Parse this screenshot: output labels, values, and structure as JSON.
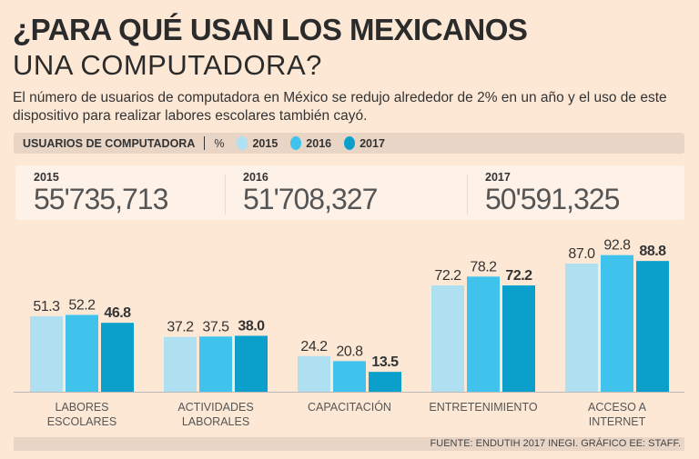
{
  "title_line1": "¿PARA QUÉ USAN LOS MEXICANOS",
  "title_line2": "UNA COMPUTADORA?",
  "subtitle": "El número de usuarios de computadora en México se redujo alrededor de 2% en un año y el uso de este dispositivo para realizar labores escolares también cayó.",
  "legend": {
    "label": "USUARIOS DE COMPUTADORA",
    "unit": "%",
    "items": [
      {
        "year": "2015",
        "color": "#aee0f2"
      },
      {
        "year": "2016",
        "color": "#3fc2ec"
      },
      {
        "year": "2017",
        "color": "#0aa0cb"
      }
    ]
  },
  "totals": [
    {
      "year": "2015",
      "value": "55'735,713"
    },
    {
      "year": "2016",
      "value": "51'708,327"
    },
    {
      "year": "2017",
      "value": "50'591,325"
    }
  ],
  "chart_data": {
    "type": "bar",
    "categories": [
      [
        "LABORES",
        "ESCOLARES"
      ],
      [
        "ACTIVIDADES",
        "LABORALES"
      ],
      [
        "CAPACITACIÓN"
      ],
      [
        "ENTRETENIMIENTO"
      ],
      [
        "ACCESO A",
        "INTERNET"
      ]
    ],
    "series": [
      {
        "name": "2015",
        "color": "#aee0f2",
        "values": [
          51.3,
          37.2,
          24.2,
          72.2,
          87.0
        ],
        "labels": [
          "51.3",
          "37.2",
          "24.2",
          "72.2",
          "87.0"
        ]
      },
      {
        "name": "2016",
        "color": "#3fc2ec",
        "values": [
          52.2,
          37.5,
          20.8,
          78.2,
          92.8
        ],
        "labels": [
          "52.2",
          "37.5",
          "20.8",
          "78.2",
          "92.8"
        ]
      },
      {
        "name": "2017",
        "color": "#0aa0cb",
        "values": [
          46.8,
          38.0,
          13.5,
          72.2,
          88.8
        ],
        "labels": [
          "46.8",
          "38.0",
          "13.5",
          "72.2",
          "88.8"
        ]
      }
    ],
    "ylim": [
      0,
      100
    ],
    "unit": "%"
  },
  "footer": "FUENTE: ENDUTIH 2017 INEGI. GRÁFICO EE: STAFF."
}
